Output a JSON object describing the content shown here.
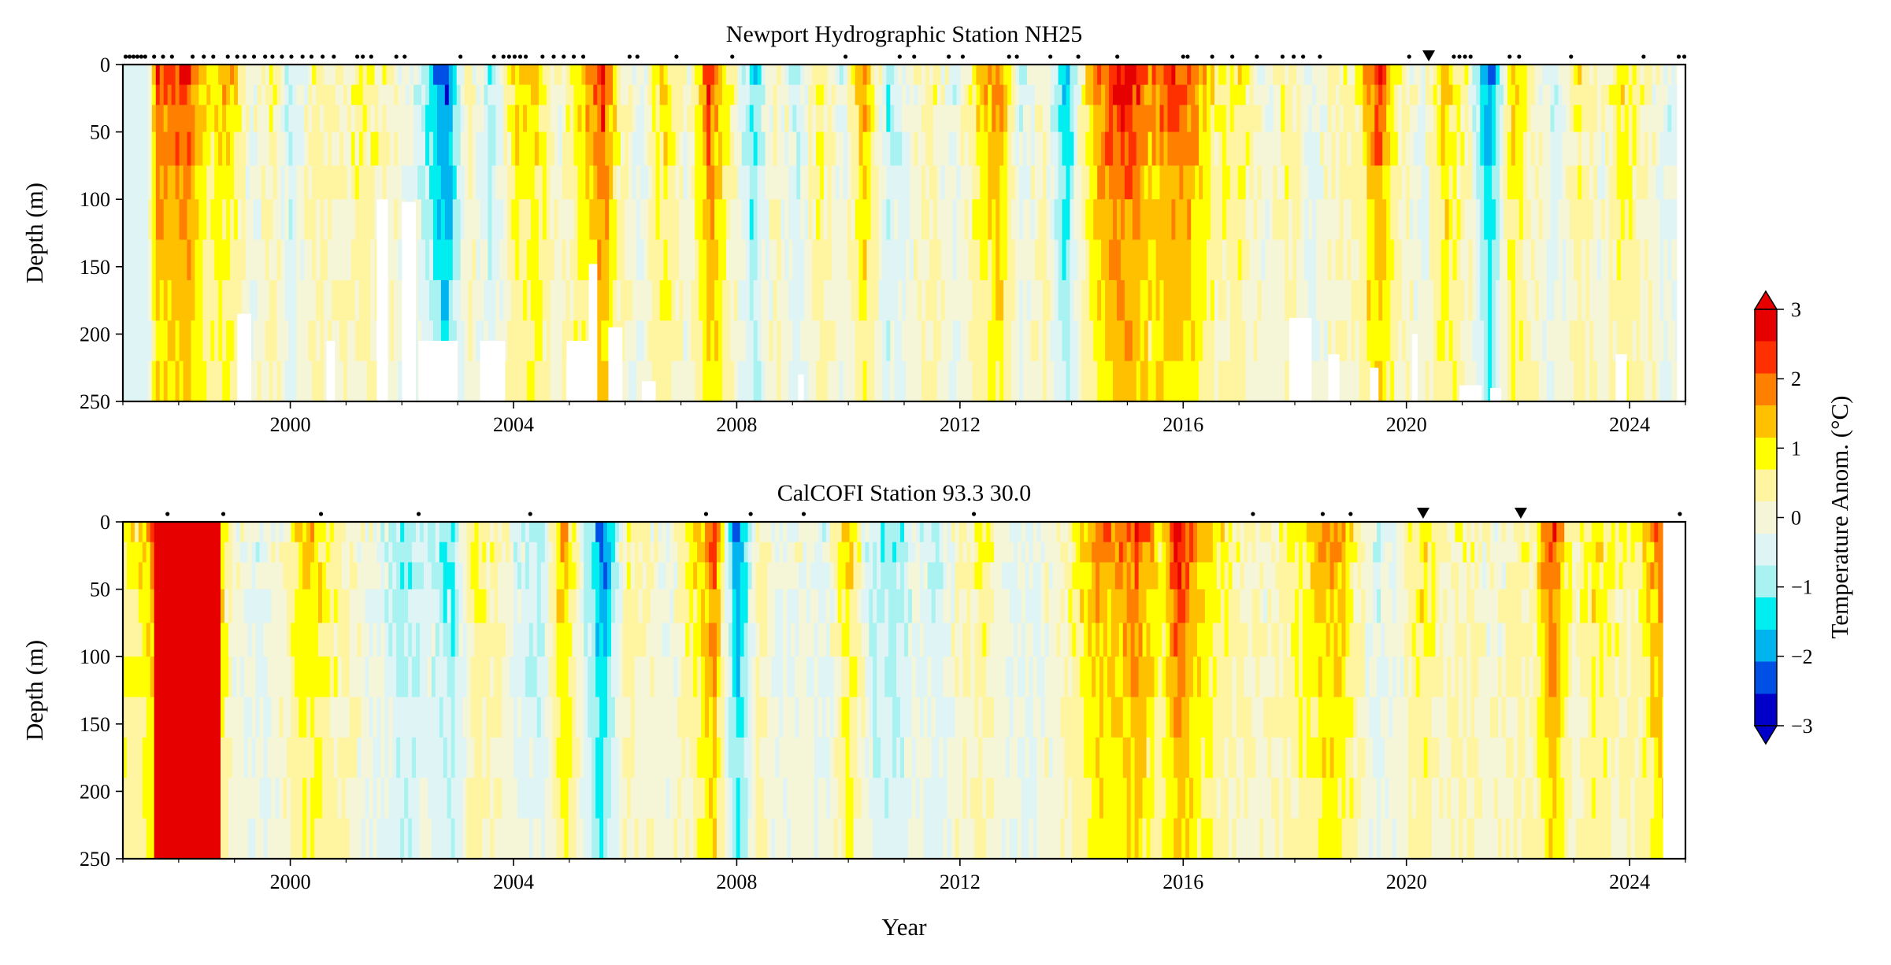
{
  "chart_data": [
    {
      "type": "heatmap",
      "title": "Newport Hydrographic Station NH25",
      "xlabel": "",
      "ylabel": "Depth (m)",
      "xlim": [
        1997.0,
        2025.0
      ],
      "ylim": [
        0,
        250
      ],
      "y_inverted": true,
      "x_ticks": [
        2000,
        2004,
        2008,
        2012,
        2016,
        2020,
        2024
      ],
      "y_ticks": [
        0,
        50,
        100,
        150,
        200,
        250
      ],
      "z_label": "Temperature Anom. (°C)",
      "surface_anomaly": [
        [
          1997.5,
          0.0
        ],
        [
          1997.6,
          2.5
        ],
        [
          1997.9,
          2.0
        ],
        [
          1998.1,
          2.8
        ],
        [
          1998.5,
          1.0
        ],
        [
          1998.9,
          1.5
        ],
        [
          1999.3,
          -0.3
        ],
        [
          1999.7,
          0.8
        ],
        [
          2000.0,
          -1.0
        ],
        [
          2000.4,
          0.4
        ],
        [
          2000.9,
          0.2
        ],
        [
          2001.3,
          0.8
        ],
        [
          2001.8,
          0.2
        ],
        [
          2002.3,
          -0.5
        ],
        [
          2002.8,
          -2.8
        ],
        [
          2003.2,
          0.5
        ],
        [
          2003.6,
          -1.0
        ],
        [
          2004.0,
          1.0
        ],
        [
          2004.4,
          1.3
        ],
        [
          2004.8,
          0.0
        ],
        [
          2005.3,
          1.5
        ],
        [
          2005.6,
          2.8
        ],
        [
          2005.9,
          0.5
        ],
        [
          2006.3,
          -0.5
        ],
        [
          2006.7,
          1.5
        ],
        [
          2007.1,
          -0.3
        ],
        [
          2007.5,
          2.5
        ],
        [
          2007.9,
          0.5
        ],
        [
          2008.3,
          -1.5
        ],
        [
          2008.7,
          0.5
        ],
        [
          2009.1,
          -0.8
        ],
        [
          2009.5,
          1.0
        ],
        [
          2009.9,
          -0.5
        ],
        [
          2010.3,
          1.8
        ],
        [
          2010.7,
          -1.0
        ],
        [
          2011.1,
          -0.2
        ],
        [
          2011.5,
          0.6
        ],
        [
          2011.9,
          -0.5
        ],
        [
          2012.3,
          1.0
        ],
        [
          2012.7,
          2.0
        ],
        [
          2013.1,
          -0.5
        ],
        [
          2013.5,
          0.5
        ],
        [
          2013.9,
          -2.0
        ],
        [
          2014.3,
          1.2
        ],
        [
          2014.7,
          2.6
        ],
        [
          2015.0,
          3.0
        ],
        [
          2015.4,
          1.8
        ],
        [
          2015.8,
          2.5
        ],
        [
          2016.2,
          2.0
        ],
        [
          2016.6,
          0.6
        ],
        [
          2017.0,
          1.0
        ],
        [
          2017.5,
          -0.3
        ],
        [
          2017.9,
          0.8
        ],
        [
          2018.3,
          -0.5
        ],
        [
          2018.7,
          0.3
        ],
        [
          2019.1,
          0.5
        ],
        [
          2019.5,
          2.6
        ],
        [
          2019.9,
          0.3
        ],
        [
          2020.3,
          -0.3
        ],
        [
          2020.7,
          1.5
        ],
        [
          2021.1,
          0.3
        ],
        [
          2021.5,
          -2.5
        ],
        [
          2021.9,
          1.5
        ],
        [
          2022.3,
          0.2
        ],
        [
          2022.7,
          -0.6
        ],
        [
          2023.1,
          0.8
        ],
        [
          2023.5,
          0.0
        ],
        [
          2023.9,
          1.2
        ],
        [
          2024.3,
          0.2
        ],
        [
          2024.7,
          -0.5
        ]
      ],
      "sample_markers": [
        1997.05,
        1997.12,
        1997.19,
        1997.26,
        1997.33,
        1997.4,
        1997.56,
        1997.72,
        1997.88,
        1998.25,
        1998.45,
        1998.62,
        1998.88,
        1999.05,
        1999.18,
        1999.35,
        1999.55,
        1999.68,
        1999.85,
        2000.02,
        2000.22,
        2000.38,
        2000.58,
        2000.78,
        2001.2,
        2001.3,
        2001.45,
        2001.9,
        2002.05,
        2003.05,
        2003.65,
        2003.82,
        2003.92,
        2004.02,
        2004.12,
        2004.22,
        2004.52,
        2004.72,
        2004.9,
        2005.08,
        2005.25,
        2006.08,
        2006.22,
        2006.92,
        2007.92,
        2009.95,
        2010.92,
        2011.18,
        2011.8,
        2012.05,
        2012.88,
        2013.02,
        2013.62,
        2014.12,
        2014.82,
        2016.0,
        2016.08,
        2016.52,
        2016.88,
        2017.32,
        2017.78,
        2017.98,
        2018.15,
        2018.45,
        2020.05,
        2020.85,
        2020.95,
        2021.05,
        2021.15,
        2021.85,
        2022.02,
        2022.95,
        2024.25,
        2024.88,
        2024.98
      ],
      "event_markers": [
        2020.4
      ]
    },
    {
      "type": "heatmap",
      "title": "CalCOFI Station 93.3 30.0",
      "xlabel": "Year",
      "ylabel": "Depth (m)",
      "xlim": [
        1997.0,
        2025.0
      ],
      "ylim": [
        0,
        250
      ],
      "y_inverted": true,
      "x_ticks": [
        2000,
        2004,
        2008,
        2012,
        2016,
        2020,
        2024
      ],
      "y_ticks": [
        0,
        50,
        100,
        150,
        200,
        250
      ],
      "z_label": "Temperature Anom. (°C)",
      "surface_anomaly": [
        [
          1997.2,
          0.8
        ],
        [
          1997.6,
          2.0
        ],
        [
          1997.9,
          3.0
        ],
        [
          1998.3,
          3.0
        ],
        [
          1998.7,
          1.5
        ],
        [
          1999.0,
          0.0
        ],
        [
          1999.4,
          -0.5
        ],
        [
          1999.8,
          0.0
        ],
        [
          2000.3,
          1.6
        ],
        [
          2000.7,
          0.8
        ],
        [
          2001.1,
          0.2
        ],
        [
          2001.6,
          -0.3
        ],
        [
          2002.0,
          -1.2
        ],
        [
          2002.5,
          -0.6
        ],
        [
          2002.9,
          -1.3
        ],
        [
          2003.3,
          0.8
        ],
        [
          2003.7,
          0.5
        ],
        [
          2004.1,
          -0.5
        ],
        [
          2004.5,
          -1.0
        ],
        [
          2004.9,
          1.8
        ],
        [
          2005.3,
          -0.8
        ],
        [
          2005.6,
          -2.6
        ],
        [
          2006.0,
          0.5
        ],
        [
          2006.4,
          0.2
        ],
        [
          2006.8,
          -0.2
        ],
        [
          2007.2,
          0.8
        ],
        [
          2007.6,
          2.5
        ],
        [
          2008.0,
          -2.6
        ],
        [
          2008.4,
          0.6
        ],
        [
          2008.8,
          -0.5
        ],
        [
          2009.2,
          0.0
        ],
        [
          2009.6,
          -0.6
        ],
        [
          2010.0,
          1.5
        ],
        [
          2010.4,
          -0.8
        ],
        [
          2010.8,
          -1.2
        ],
        [
          2011.2,
          -0.3
        ],
        [
          2011.6,
          -0.8
        ],
        [
          2012.0,
          0.2
        ],
        [
          2012.4,
          0.8
        ],
        [
          2012.8,
          -0.2
        ],
        [
          2013.2,
          -0.4
        ],
        [
          2013.6,
          0.0
        ],
        [
          2014.0,
          0.5
        ],
        [
          2014.4,
          1.8
        ],
        [
          2014.8,
          1.8
        ],
        [
          2015.2,
          2.4
        ],
        [
          2015.6,
          0.8
        ],
        [
          2015.9,
          3.0
        ],
        [
          2016.3,
          1.5
        ],
        [
          2016.7,
          0.8
        ],
        [
          2017.1,
          0.3
        ],
        [
          2017.5,
          0.0
        ],
        [
          2017.9,
          0.8
        ],
        [
          2018.3,
          1.2
        ],
        [
          2018.7,
          2.0
        ],
        [
          2019.1,
          0.6
        ],
        [
          2019.5,
          -0.6
        ],
        [
          2019.9,
          0.0
        ],
        [
          2020.3,
          1.2
        ],
        [
          2020.7,
          0.2
        ],
        [
          2021.1,
          0.5
        ],
        [
          2021.5,
          0.0
        ],
        [
          2021.9,
          0.3
        ],
        [
          2022.3,
          0.6
        ],
        [
          2022.6,
          2.6
        ],
        [
          2023.0,
          0.2
        ],
        [
          2023.4,
          1.2
        ],
        [
          2023.8,
          0.5
        ],
        [
          2024.2,
          0.8
        ],
        [
          2024.5,
          2.0
        ]
      ],
      "sample_markers": [
        1997.8,
        1998.8,
        2000.55,
        2002.3,
        2004.3,
        2007.45,
        2008.25,
        2009.2,
        2012.25,
        2017.25,
        2018.5,
        2019.0,
        2024.9
      ],
      "event_markers": [
        2020.3,
        2022.05
      ]
    }
  ],
  "colorbar": {
    "label": "Temperature Anom. (°C)",
    "min": -3,
    "max": 3,
    "ticks": [
      -3,
      -2,
      -1,
      0,
      1,
      2,
      3
    ],
    "tick_labels": [
      "−3",
      "−2",
      "−1",
      "0",
      "1",
      "2",
      "3"
    ],
    "extend": "both",
    "colors": [
      "#0000c8",
      "#0050e6",
      "#00b4f0",
      "#00eef0",
      "#a8f2f2",
      "#dff5f5",
      "#f5f5d8",
      "#fff5a0",
      "#ffff00",
      "#ffc000",
      "#ff8000",
      "#ff3000",
      "#e60000"
    ]
  }
}
